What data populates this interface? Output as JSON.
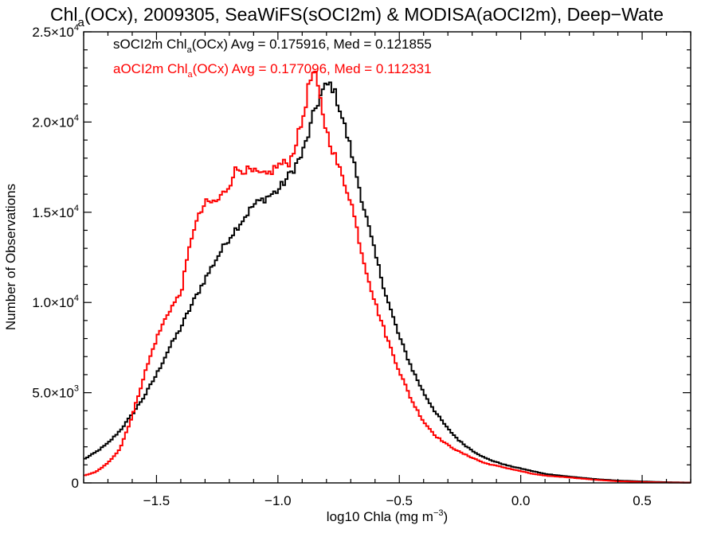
{
  "chart_data": {
    "type": "line",
    "title": {
      "prefix": "Chl",
      "sub": "a",
      "rest": "(OCx), 2009305, SeaWiFS(sOCI2m) & MODISA(aOCI2m), Deep−Wate"
    },
    "xlabel": {
      "text": "log10 Chla (mg m",
      "sup": "−3",
      "close": ")"
    },
    "ylabel": "Number of Observations",
    "xlim": [
      -1.8,
      0.7
    ],
    "ylim": [
      0,
      25000
    ],
    "x_ticks": [
      {
        "value": -1.5,
        "label": "−1.5"
      },
      {
        "value": -1.0,
        "label": "−1.0"
      },
      {
        "value": -0.5,
        "label": "−0.5"
      },
      {
        "value": 0.0,
        "label": "0.0"
      },
      {
        "value": 0.5,
        "label": "0.5"
      }
    ],
    "y_ticks": [
      {
        "value": 0,
        "mant": "0",
        "exp": ""
      },
      {
        "value": 5000,
        "mant": "5.0×10",
        "exp": "3"
      },
      {
        "value": 10000,
        "mant": "1.0×10",
        "exp": "4"
      },
      {
        "value": 15000,
        "mant": "1.5×10",
        "exp": "4"
      },
      {
        "value": 20000,
        "mant": "2.0×10",
        "exp": "4"
      },
      {
        "value": 25000,
        "mant": "2.5×10",
        "exp": "4"
      }
    ],
    "grid": false,
    "legend_position": "top-left",
    "series": [
      {
        "key": "sOCI2m",
        "color": "#000000",
        "legend": {
          "pre": "sOCI2m Chl",
          "sub": "a",
          "post": "(OCx) Avg = 0.175916, Med = 0.121855"
        },
        "x": [
          -1.8,
          -1.75,
          -1.7,
          -1.65,
          -1.6,
          -1.55,
          -1.5,
          -1.45,
          -1.4,
          -1.35,
          -1.3,
          -1.25,
          -1.2,
          -1.15,
          -1.1,
          -1.05,
          -1.0,
          -0.95,
          -0.9,
          -0.87,
          -0.85,
          -0.82,
          -0.8,
          -0.78,
          -0.75,
          -0.72,
          -0.7,
          -0.65,
          -0.6,
          -0.55,
          -0.5,
          -0.45,
          -0.4,
          -0.35,
          -0.3,
          -0.25,
          -0.2,
          -0.15,
          -0.1,
          -0.05,
          0.0,
          0.05,
          0.1,
          0.2,
          0.3,
          0.4,
          0.5,
          0.6,
          0.7
        ],
        "y": [
          1300,
          1700,
          2200,
          2900,
          3800,
          4800,
          6000,
          7400,
          8600,
          10000,
          11300,
          12500,
          13600,
          14500,
          15400,
          15800,
          16200,
          17100,
          18200,
          19500,
          20600,
          21600,
          22000,
          22100,
          21000,
          19500,
          18500,
          15500,
          12700,
          10200,
          8100,
          6400,
          5000,
          3900,
          3000,
          2300,
          1800,
          1400,
          1150,
          950,
          800,
          650,
          500,
          350,
          220,
          130,
          80,
          40,
          20
        ]
      },
      {
        "key": "aOCI2m",
        "color": "#ff0000",
        "legend": {
          "pre": "aOCI2m Chl",
          "sub": "a",
          "post": "(OCx) Avg = 0.177096, Med = 0.112331"
        },
        "x": [
          -1.8,
          -1.75,
          -1.7,
          -1.65,
          -1.6,
          -1.55,
          -1.5,
          -1.45,
          -1.4,
          -1.35,
          -1.3,
          -1.25,
          -1.2,
          -1.18,
          -1.15,
          -1.1,
          -1.05,
          -1.0,
          -0.95,
          -0.9,
          -0.87,
          -0.85,
          -0.83,
          -0.8,
          -0.75,
          -0.7,
          -0.65,
          -0.6,
          -0.55,
          -0.5,
          -0.45,
          -0.4,
          -0.35,
          -0.3,
          -0.25,
          -0.2,
          -0.15,
          -0.1,
          -0.05,
          0.0,
          0.05,
          0.1,
          0.2,
          0.3,
          0.4,
          0.5,
          0.6,
          0.7
        ],
        "y": [
          400,
          600,
          1100,
          1900,
          3700,
          6000,
          8000,
          9500,
          10500,
          14000,
          15500,
          15600,
          16500,
          17300,
          17400,
          17200,
          17000,
          17600,
          17800,
          20000,
          22200,
          22800,
          21500,
          19500,
          17500,
          15700,
          12500,
          10000,
          8000,
          6200,
          4600,
          3400,
          2600,
          2100,
          1700,
          1400,
          1100,
          950,
          800,
          650,
          500,
          400,
          300,
          180,
          90,
          50,
          20,
          10
        ]
      }
    ]
  }
}
